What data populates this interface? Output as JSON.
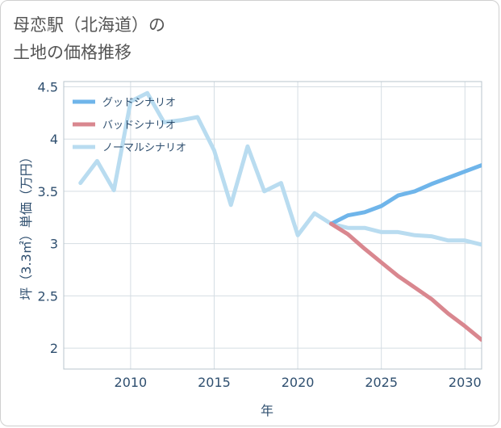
{
  "page": {
    "title_line1": "母恋駅（北海道）の",
    "title_line2": "土地の価格推移"
  },
  "chart_data": {
    "type": "line",
    "xlabel": "年",
    "ylabel": "坪（3.3㎡）単価（万円）",
    "xlim": [
      2006,
      2031
    ],
    "ylim": [
      1.8,
      4.55
    ],
    "x_ticks": [
      2010,
      2015,
      2020,
      2025,
      2030
    ],
    "y_ticks": [
      2,
      2.5,
      3,
      3.5,
      4,
      4.5
    ],
    "y_tick_labels": [
      "2",
      "2.5",
      "3",
      "3.5",
      "4",
      "4.5"
    ],
    "grid": true,
    "legend_position": "top-left",
    "series": [
      {
        "name": "グッドシナリオ",
        "color": "#6fb5ea",
        "x": [
          2022,
          2023,
          2024,
          2025,
          2026,
          2027,
          2028,
          2029,
          2030,
          2031
        ],
        "y": [
          3.19,
          3.27,
          3.3,
          3.36,
          3.46,
          3.5,
          3.57,
          3.63,
          3.69,
          3.75
        ]
      },
      {
        "name": "バッドシナリオ",
        "color": "#d9878f",
        "x": [
          2022,
          2023,
          2024,
          2025,
          2026,
          2027,
          2028,
          2029,
          2030,
          2031
        ],
        "y": [
          3.19,
          3.09,
          2.95,
          2.82,
          2.69,
          2.58,
          2.47,
          2.33,
          2.21,
          2.08
        ]
      },
      {
        "name": "ノーマルシナリオ",
        "color": "#b9dcf0",
        "x": [
          2007,
          2008,
          2009,
          2010,
          2011,
          2012,
          2013,
          2014,
          2015,
          2016,
          2017,
          2018,
          2019,
          2020,
          2021,
          2022,
          2023,
          2024,
          2025,
          2026,
          2027,
          2028,
          2029,
          2030,
          2031
        ],
        "y": [
          3.58,
          3.79,
          3.51,
          4.36,
          4.44,
          4.16,
          4.18,
          4.21,
          3.89,
          3.37,
          3.93,
          3.5,
          3.58,
          3.08,
          3.29,
          3.19,
          3.15,
          3.15,
          3.11,
          3.11,
          3.08,
          3.07,
          3.03,
          3.03,
          2.99
        ]
      }
    ]
  }
}
